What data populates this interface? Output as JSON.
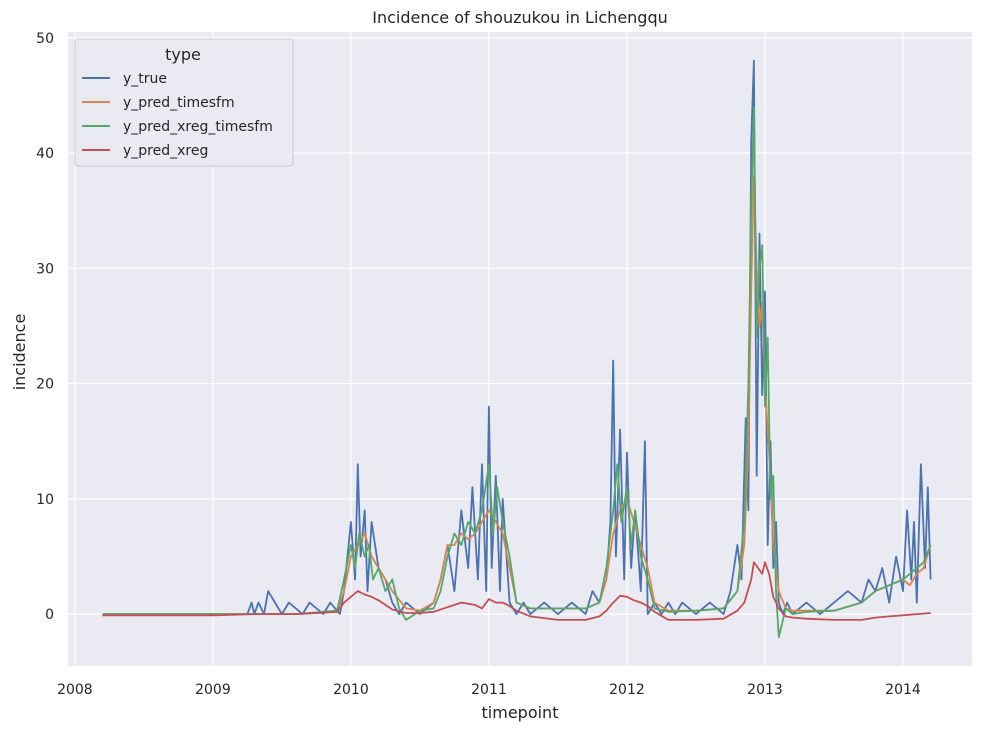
{
  "chart_data": {
    "type": "line",
    "title": "Incidence of shouzukou in Lichengqu",
    "xlabel": "timepoint",
    "ylabel": "incidence",
    "xlim": [
      2007.95,
      2014.5
    ],
    "ylim": [
      -4.5,
      50.5
    ],
    "x_ticks": [
      2008,
      2009,
      2010,
      2011,
      2012,
      2013,
      2014
    ],
    "x_tick_labels": [
      "2008",
      "2009",
      "2010",
      "2011",
      "2012",
      "2013",
      "2014"
    ],
    "y_ticks": [
      0,
      10,
      20,
      30,
      40,
      50
    ],
    "y_tick_labels": [
      "0",
      "10",
      "20",
      "30",
      "40",
      "50"
    ],
    "grid": true,
    "legend": {
      "title": "type",
      "position": "top-left"
    },
    "colors": {
      "background": "#eaeaf2",
      "grid": "#ffffff",
      "y_true": "#4c72b0",
      "y_pred_timesfm": "#dd8452",
      "y_pred_xreg_timesfm": "#55a868",
      "y_pred_xreg": "#c44e52"
    },
    "series": [
      {
        "name": "y_true",
        "x": [
          2008.2,
          2009.0,
          2009.25,
          2009.28,
          2009.3,
          2009.33,
          2009.37,
          2009.4,
          2009.5,
          2009.55,
          2009.65,
          2009.7,
          2009.8,
          2009.85,
          2009.92,
          2009.95,
          2010.0,
          2010.03,
          2010.05,
          2010.07,
          2010.1,
          2010.12,
          2010.15,
          2010.2,
          2010.25,
          2010.3,
          2010.35,
          2010.4,
          2010.5,
          2010.6,
          2010.65,
          2010.7,
          2010.75,
          2010.8,
          2010.85,
          2010.88,
          2010.92,
          2010.95,
          2010.98,
          2011.0,
          2011.02,
          2011.05,
          2011.08,
          2011.1,
          2011.15,
          2011.2,
          2011.25,
          2011.3,
          2011.4,
          2011.5,
          2011.6,
          2011.7,
          2011.75,
          2011.8,
          2011.85,
          2011.88,
          2011.9,
          2011.92,
          2011.95,
          2011.98,
          2012.0,
          2012.03,
          2012.06,
          2012.1,
          2012.13,
          2012.15,
          2012.2,
          2012.25,
          2012.3,
          2012.35,
          2012.4,
          2012.5,
          2012.6,
          2012.7,
          2012.75,
          2012.8,
          2012.83,
          2012.86,
          2012.88,
          2012.9,
          2012.92,
          2012.94,
          2012.96,
          2012.98,
          2013.0,
          2013.02,
          2013.04,
          2013.06,
          2013.08,
          2013.1,
          2013.13,
          2013.16,
          2013.2,
          2013.3,
          2013.4,
          2013.5,
          2013.6,
          2013.7,
          2013.75,
          2013.8,
          2013.85,
          2013.9,
          2013.95,
          2014.0,
          2014.03,
          2014.06,
          2014.08,
          2014.1,
          2014.13,
          2014.16,
          2014.18,
          2014.2
        ],
        "values": [
          0,
          0,
          0,
          1,
          0,
          1,
          0,
          2,
          0,
          1,
          0,
          1,
          0,
          1,
          0,
          2,
          8,
          3,
          13,
          5,
          9,
          2,
          8,
          4,
          3,
          1,
          0,
          1,
          0,
          1,
          3,
          6,
          2,
          9,
          4,
          11,
          3,
          13,
          2,
          18,
          4,
          12,
          2,
          10,
          1,
          0,
          1,
          0,
          1,
          0,
          1,
          0,
          2,
          1,
          3,
          8,
          22,
          5,
          16,
          3,
          14,
          4,
          9,
          2,
          15,
          0,
          1,
          0,
          1,
          0,
          1,
          0,
          1,
          0,
          2,
          6,
          3,
          17,
          9,
          41,
          48,
          12,
          33,
          19,
          28,
          6,
          15,
          4,
          8,
          1,
          0,
          1,
          0,
          1,
          0,
          1,
          2,
          1,
          3,
          2,
          4,
          1,
          5,
          2,
          9,
          3,
          8,
          1,
          13,
          4,
          11,
          3
        ]
      },
      {
        "name": "y_pred_timesfm",
        "x": [
          2008.2,
          2009.0,
          2009.3,
          2009.6,
          2009.9,
          2009.95,
          2010.0,
          2010.05,
          2010.1,
          2010.15,
          2010.2,
          2010.25,
          2010.3,
          2010.4,
          2010.5,
          2010.6,
          2010.65,
          2010.7,
          2010.75,
          2010.8,
          2010.85,
          2010.9,
          2010.95,
          2011.0,
          2011.05,
          2011.1,
          2011.15,
          2011.2,
          2011.3,
          2011.5,
          2011.7,
          2011.8,
          2011.85,
          2011.9,
          2011.95,
          2012.0,
          2012.05,
          2012.1,
          2012.15,
          2012.2,
          2012.3,
          2012.5,
          2012.7,
          2012.8,
          2012.85,
          2012.88,
          2012.9,
          2012.92,
          2012.94,
          2012.96,
          2012.98,
          2013.0,
          2013.03,
          2013.06,
          2013.1,
          2013.15,
          2013.2,
          2013.3,
          2013.5,
          2013.7,
          2013.8,
          2013.9,
          2014.0,
          2014.05,
          2014.1,
          2014.15,
          2014.2
        ],
        "values": [
          0,
          0,
          0,
          0,
          0.2,
          2,
          5,
          6,
          7,
          5,
          4,
          3,
          2,
          0.5,
          0.3,
          1,
          3,
          6,
          6,
          7,
          6.5,
          7,
          8,
          9,
          8,
          7,
          4,
          1,
          0.5,
          0.5,
          0.5,
          1,
          3,
          7,
          9,
          10,
          8,
          6,
          4,
          1,
          0.3,
          0.3,
          0.5,
          2,
          6,
          15,
          28,
          38,
          30,
          25,
          27,
          20,
          14,
          6,
          2,
          0.5,
          0.3,
          0.3,
          0.3,
          1,
          2,
          2.5,
          3,
          2.5,
          3.5,
          4,
          6
        ]
      },
      {
        "name": "y_pred_xreg_timesfm",
        "x": [
          2008.2,
          2009.0,
          2009.3,
          2009.6,
          2009.9,
          2009.95,
          2010.0,
          2010.03,
          2010.06,
          2010.1,
          2010.13,
          2010.16,
          2010.2,
          2010.25,
          2010.3,
          2010.35,
          2010.4,
          2010.5,
          2010.6,
          2010.65,
          2010.7,
          2010.75,
          2010.8,
          2010.85,
          2010.9,
          2010.95,
          2011.0,
          2011.03,
          2011.06,
          2011.1,
          2011.15,
          2011.2,
          2011.3,
          2011.5,
          2011.7,
          2011.8,
          2011.85,
          2011.9,
          2011.93,
          2011.96,
          2012.0,
          2012.03,
          2012.06,
          2012.1,
          2012.15,
          2012.2,
          2012.3,
          2012.5,
          2012.7,
          2012.8,
          2012.85,
          2012.88,
          2012.9,
          2012.92,
          2012.94,
          2012.96,
          2012.98,
          2013.0,
          2013.02,
          2013.04,
          2013.06,
          2013.08,
          2013.1,
          2013.15,
          2013.2,
          2013.3,
          2013.5,
          2013.7,
          2013.8,
          2013.9,
          2014.0,
          2014.05,
          2014.1,
          2014.15,
          2014.2
        ],
        "values": [
          0,
          0,
          0,
          0,
          0.3,
          3,
          6,
          4,
          7,
          5,
          6,
          3,
          4,
          2,
          3,
          0.5,
          -0.5,
          0.3,
          0.5,
          2,
          5,
          7,
          6,
          8,
          7,
          9,
          13,
          7,
          11,
          8,
          5,
          1,
          0.5,
          0.5,
          0.5,
          1,
          4,
          9,
          13,
          8,
          11,
          6,
          9,
          5,
          3,
          0.5,
          0.2,
          0.3,
          0.5,
          2,
          8,
          20,
          35,
          44,
          24,
          30,
          32,
          18,
          24,
          10,
          12,
          2,
          -2,
          0.5,
          0,
          0.2,
          0.3,
          1,
          2,
          2.5,
          3,
          3.5,
          4,
          4.5,
          6
        ]
      },
      {
        "name": "y_pred_xreg",
        "x": [
          2008.2,
          2009.0,
          2009.3,
          2009.6,
          2009.9,
          2009.95,
          2010.0,
          2010.05,
          2010.1,
          2010.15,
          2010.2,
          2010.25,
          2010.3,
          2010.4,
          2010.5,
          2010.6,
          2010.7,
          2010.8,
          2010.9,
          2010.95,
          2011.0,
          2011.05,
          2011.1,
          2011.15,
          2011.2,
          2011.3,
          2011.5,
          2011.7,
          2011.8,
          2011.85,
          2011.9,
          2011.95,
          2012.0,
          2012.05,
          2012.1,
          2012.15,
          2012.2,
          2012.3,
          2012.5,
          2012.7,
          2012.8,
          2012.85,
          2012.9,
          2012.92,
          2012.95,
          2012.98,
          2013.0,
          2013.03,
          2013.06,
          2013.1,
          2013.15,
          2013.2,
          2013.3,
          2013.5,
          2013.7,
          2013.8,
          2013.9,
          2014.0,
          2014.1,
          2014.2
        ],
        "values": [
          -0.1,
          -0.1,
          0,
          0,
          0.2,
          1,
          1.5,
          2,
          1.7,
          1.5,
          1.2,
          0.8,
          0.4,
          0.1,
          0.1,
          0.2,
          0.6,
          1,
          0.8,
          0.5,
          1.3,
          1,
          1,
          0.7,
          0.3,
          -0.2,
          -0.5,
          -0.5,
          -0.2,
          0.3,
          1,
          1.6,
          1.5,
          1.2,
          1,
          0.7,
          0.2,
          -0.5,
          -0.5,
          -0.4,
          0.3,
          1,
          3,
          4.5,
          4,
          3.5,
          4.5,
          3.5,
          1.5,
          0.5,
          -0.2,
          -0.3,
          -0.4,
          -0.5,
          -0.5,
          -0.3,
          -0.2,
          -0.1,
          0,
          0.1
        ]
      }
    ]
  }
}
